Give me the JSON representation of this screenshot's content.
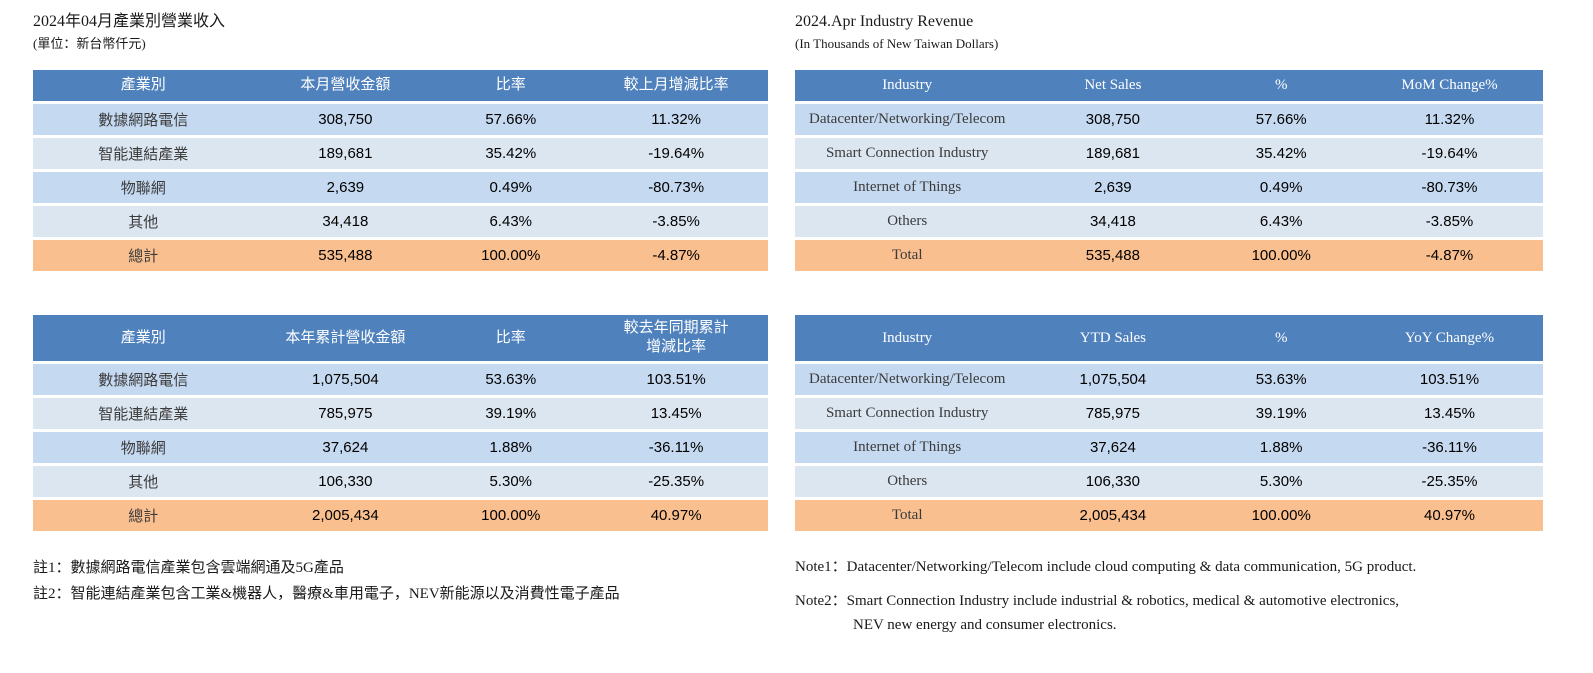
{
  "colors": {
    "header-bg": "#4F81BD",
    "header-text": "#FFFFFF",
    "row-odd": "#C5D9F1",
    "row-even": "#DCE6F1",
    "total-bg": "#FABF8F"
  },
  "left": {
    "title": "2024年04月產業別營業收入",
    "subtitle": "(單位：新台幣仟元)",
    "month_table": {
      "headers": [
        "產業別",
        "本月營收金額",
        "比率",
        "較上月增減比率"
      ],
      "rows": [
        {
          "label": "數據網路電信",
          "value": "308,750",
          "pct": "57.66%",
          "chg": "11.32%"
        },
        {
          "label": "智能連結產業",
          "value": "189,681",
          "pct": "35.42%",
          "chg": "-19.64%"
        },
        {
          "label": "物聯網",
          "value": "2,639",
          "pct": "0.49%",
          "chg": "-80.73%"
        },
        {
          "label": "其他",
          "value": "34,418",
          "pct": "6.43%",
          "chg": "-3.85%"
        }
      ],
      "total": {
        "label": "總計",
        "value": "535,488",
        "pct": "100.00%",
        "chg": "-4.87%"
      }
    },
    "ytd_table": {
      "headers": [
        "產業別",
        "本年累計營收金額",
        "比率",
        "較去年同期累計\n增減比率"
      ],
      "rows": [
        {
          "label": "數據網路電信",
          "value": "1,075,504",
          "pct": "53.63%",
          "chg": "103.51%"
        },
        {
          "label": "智能連結產業",
          "value": "785,975",
          "pct": "39.19%",
          "chg": "13.45%"
        },
        {
          "label": "物聯網",
          "value": "37,624",
          "pct": "1.88%",
          "chg": "-36.11%"
        },
        {
          "label": "其他",
          "value": "106,330",
          "pct": "5.30%",
          "chg": "-25.35%"
        }
      ],
      "total": {
        "label": "總計",
        "value": "2,005,434",
        "pct": "100.00%",
        "chg": "40.97%"
      }
    },
    "notes": [
      "註1：數據網路電信產業包含雲端網通及5G產品",
      "註2：智能連結產業包含工業&機器人，醫療&車用電子，NEV新能源以及消費性電子產品"
    ]
  },
  "right": {
    "title": "2024.Apr Industry Revenue",
    "subtitle": "(In Thousands of New Taiwan Dollars)",
    "month_table": {
      "headers": [
        "Industry",
        "Net Sales",
        "%",
        "MoM Change%"
      ],
      "rows": [
        {
          "label": "Datacenter/Networking/Telecom",
          "value": "308,750",
          "pct": "57.66%",
          "chg": "11.32%"
        },
        {
          "label": "Smart Connection Industry",
          "value": "189,681",
          "pct": "35.42%",
          "chg": "-19.64%"
        },
        {
          "label": "Internet of Things",
          "value": "2,639",
          "pct": "0.49%",
          "chg": "-80.73%"
        },
        {
          "label": "Others",
          "value": "34,418",
          "pct": "6.43%",
          "chg": "-3.85%"
        }
      ],
      "total": {
        "label": "Total",
        "value": "535,488",
        "pct": "100.00%",
        "chg": "-4.87%"
      }
    },
    "ytd_table": {
      "headers": [
        "Industry",
        "YTD Sales",
        "%",
        "YoY Change%"
      ],
      "rows": [
        {
          "label": "Datacenter/Networking/Telecom",
          "value": "1,075,504",
          "pct": "53.63%",
          "chg": "103.51%"
        },
        {
          "label": "Smart Connection Industry",
          "value": "785,975",
          "pct": "39.19%",
          "chg": "13.45%"
        },
        {
          "label": "Internet of Things",
          "value": "37,624",
          "pct": "1.88%",
          "chg": "-36.11%"
        },
        {
          "label": "Others",
          "value": "106,330",
          "pct": "5.30%",
          "chg": "-25.35%"
        }
      ],
      "total": {
        "label": "Total",
        "value": "2,005,434",
        "pct": "100.00%",
        "chg": "40.97%"
      }
    },
    "notes": [
      "Note1：Datacenter/Networking/Telecom include cloud computing & data communication, 5G product.",
      "Note2：Smart Connection Industry include industrial & robotics, medical & automotive electronics,\nNEV new energy and consumer electronics."
    ]
  }
}
